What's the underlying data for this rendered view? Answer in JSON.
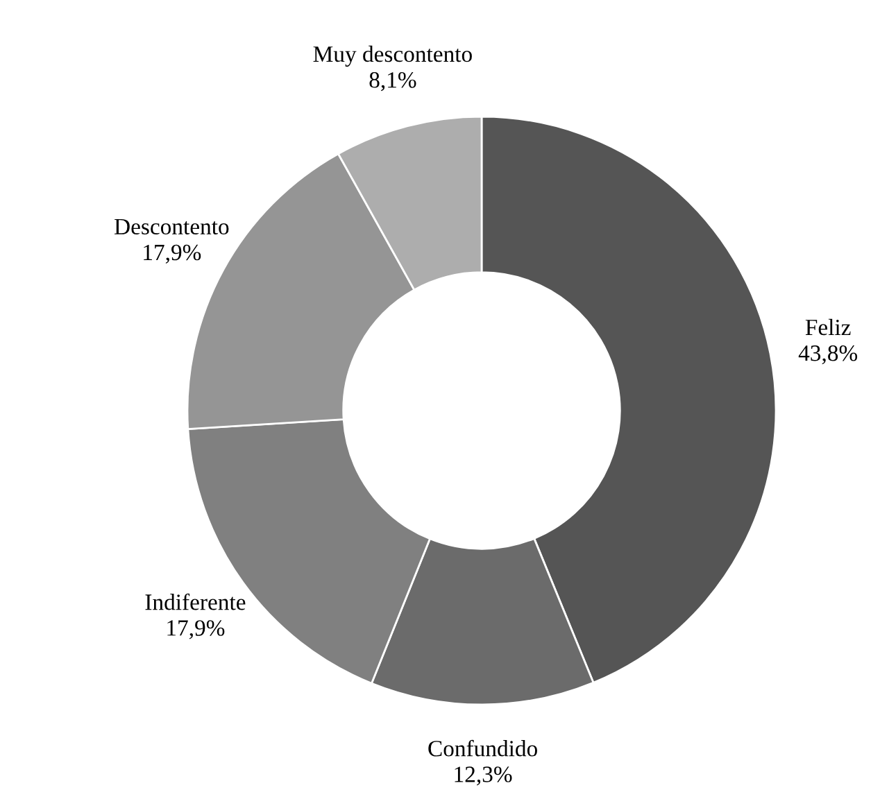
{
  "chart_data": {
    "type": "donut",
    "categories": [
      "Feliz",
      "Confundido",
      "Indiferente",
      "Descontento",
      "Muy descontento"
    ],
    "values": [
      43.8,
      12.3,
      17.9,
      17.9,
      8.1
    ],
    "value_labels": [
      "43,8%",
      "12,3%",
      "17,9%",
      "17,9%",
      "8,1%"
    ],
    "colors": [
      "#555555",
      "#6b6b6b",
      "#808080",
      "#959595",
      "#adadad"
    ]
  }
}
